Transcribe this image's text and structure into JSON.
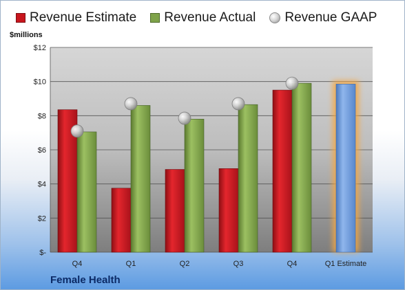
{
  "legend": {
    "estimate": "Revenue Estimate",
    "actual": "Revenue Actual",
    "gaap": "Revenue GAAP"
  },
  "unit_label": "$millions",
  "company": "Female Health",
  "colors": {
    "estimate": "#c8161d",
    "actual": "#7fa34a",
    "gaap": "#c9c9c9",
    "future_estimate": "#6f9bd8",
    "future_glow": "#f5a742"
  },
  "chart_data": {
    "type": "bar",
    "categories": [
      "Q4",
      "Q1",
      "Q2",
      "Q3",
      "Q4",
      "Q1 Estimate"
    ],
    "series": [
      {
        "name": "Revenue Estimate",
        "values": [
          8.35,
          3.75,
          4.85,
          4.9,
          9.5,
          9.85
        ]
      },
      {
        "name": "Revenue Actual",
        "values": [
          7.05,
          8.6,
          7.8,
          8.65,
          9.9,
          null
        ]
      },
      {
        "name": "Revenue GAAP",
        "values": [
          7.1,
          8.7,
          7.85,
          8.7,
          9.9,
          null
        ]
      }
    ],
    "ylim": [
      0,
      12
    ],
    "yticks": [
      0,
      2,
      4,
      6,
      8,
      10,
      12
    ],
    "ytick_labels": [
      "$-",
      "$2",
      "$4",
      "$6",
      "$8",
      "$10",
      "$12"
    ],
    "grid": true,
    "legend_position": "top"
  }
}
